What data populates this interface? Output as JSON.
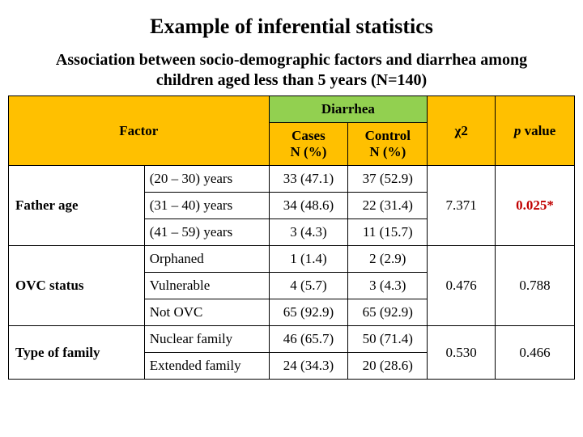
{
  "title": "Example of inferential statistics",
  "subtitle": "Association between socio-demographic factors and diarrhea among children aged less than 5 years (N=140)",
  "headers": {
    "factor": "Factor",
    "diarrhea": "Diarrhea",
    "cases": "Cases",
    "cases_sub": "N (%)",
    "control": "Control",
    "control_sub": "N (%)",
    "chi2": "χ2",
    "pvalue_prefix": "p",
    "pvalue_suffix": " value"
  },
  "colors": {
    "header_bg_main": "#ffc000",
    "header_bg_diarrhea": "#92d050",
    "border": "#000000",
    "significant_text": "#c00000",
    "background": "#ffffff"
  },
  "col_widths_pct": [
    24,
    22,
    14,
    14,
    12,
    14
  ],
  "groups": [
    {
      "factor": "Father age",
      "chi2": "7.371",
      "p": "0.025*",
      "p_sig": true,
      "rows": [
        {
          "level": "(20 – 30) years",
          "cases": "33 (47.1)",
          "control": "37 (52.9)"
        },
        {
          "level": "(31 – 40) years",
          "cases": "34 (48.6)",
          "control": "22 (31.4)"
        },
        {
          "level": "(41 – 59) years",
          "cases": "3 (4.3)",
          "control": "11 (15.7)"
        }
      ]
    },
    {
      "factor": "OVC status",
      "chi2": "0.476",
      "p": "0.788",
      "p_sig": false,
      "rows": [
        {
          "level": "Orphaned",
          "cases": "1 (1.4)",
          "control": "2 (2.9)"
        },
        {
          "level": "Vulnerable",
          "cases": "4 (5.7)",
          "control": "3 (4.3)"
        },
        {
          "level": "Not OVC",
          "cases": "65 (92.9)",
          "control": "65 (92.9)"
        }
      ]
    },
    {
      "factor": "Type of family",
      "chi2": "0.530",
      "p": "0.466",
      "p_sig": false,
      "rows": [
        {
          "level": "Nuclear family",
          "cases": "46 (65.7)",
          "control": "50 (71.4)"
        },
        {
          "level": "Extended family",
          "cases": "24 (34.3)",
          "control": "20 (28.6)"
        }
      ]
    }
  ]
}
